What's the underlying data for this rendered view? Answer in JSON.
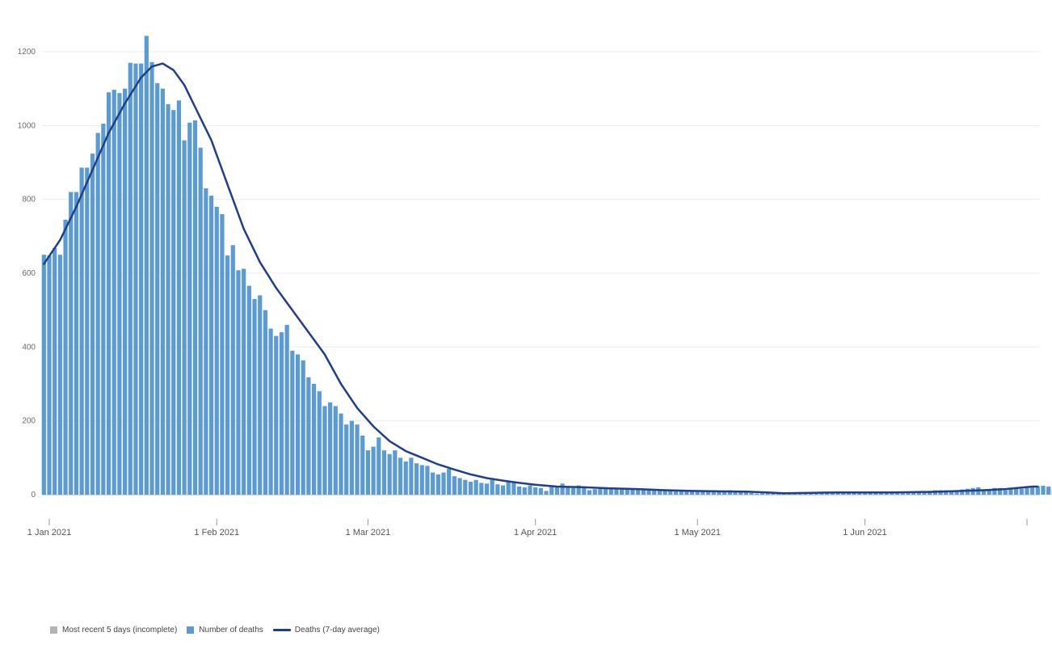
{
  "chart_data": {
    "type": "bar",
    "title": "",
    "xlabel": "",
    "ylabel": "",
    "ylim": [
      0,
      1250
    ],
    "y_ticks": [
      0,
      200,
      400,
      600,
      800,
      1000,
      1200
    ],
    "x_tick_labels": [
      "1 Jan 2021",
      "1 Feb 2021",
      "1 Mar 2021",
      "1 Apr 2021",
      "1 May 2021",
      "1 Jun 2021"
    ],
    "x_tick_dates": [
      "2021-01-01",
      "2021-02-01",
      "2021-03-01",
      "2021-04-01",
      "2021-05-01",
      "2021-06-01",
      "2021-07-01"
    ],
    "grid": "horizontal",
    "legend_position": "bottom-left",
    "series": [
      {
        "name": "Number of deaths",
        "kind": "bar",
        "color": "#5b9bd5",
        "x_start": "2020-12-31",
        "values": [
          650,
          648,
          668,
          650,
          745,
          820,
          820,
          886,
          886,
          924,
          980,
          1005,
          1090,
          1097,
          1088,
          1100,
          1170,
          1168,
          1168,
          1243,
          1172,
          1115,
          1100,
          1058,
          1042,
          1068,
          960,
          1008,
          1014,
          940,
          830,
          810,
          780,
          760,
          648,
          676,
          608,
          612,
          566,
          530,
          540,
          500,
          450,
          430,
          440,
          460,
          390,
          380,
          364,
          318,
          300,
          280,
          240,
          250,
          240,
          220,
          190,
          200,
          190,
          160,
          120,
          130,
          155,
          120,
          110,
          120,
          100,
          90,
          100,
          85,
          80,
          78,
          60,
          55,
          60,
          70,
          50,
          45,
          40,
          35,
          40,
          32,
          30,
          40,
          28,
          25,
          38,
          35,
          22,
          20,
          25,
          20,
          18,
          10,
          22,
          20,
          30,
          20,
          18,
          25,
          20,
          12,
          15,
          18,
          16,
          15,
          16,
          15,
          14,
          15,
          14,
          15,
          14,
          12,
          12,
          10,
          11,
          12,
          11,
          10,
          10,
          10,
          9,
          9,
          10,
          9,
          8,
          12,
          8,
          7,
          6,
          5,
          3,
          4,
          5,
          5,
          6,
          6,
          6,
          6,
          7,
          6,
          7,
          7,
          8,
          8,
          7,
          8,
          8,
          8,
          8,
          8,
          8,
          7,
          7,
          8,
          7,
          7,
          8,
          8,
          7,
          7,
          10,
          10,
          10,
          12,
          12,
          12,
          11,
          12,
          14,
          16,
          18,
          20,
          14,
          12,
          18,
          18,
          12,
          15,
          18,
          16,
          20,
          22,
          22,
          24,
          22,
          24
        ],
        "incomplete_days": 0
      },
      {
        "name": "Most recent 5 days (incomplete)",
        "kind": "bar",
        "color": "#b3b3b3",
        "values": []
      },
      {
        "name": "Deaths (7-day average)",
        "kind": "line",
        "color": "#1f3f8c",
        "points": [
          [
            "2020-12-31",
            625
          ],
          [
            "2021-01-03",
            690
          ],
          [
            "2021-01-06",
            780
          ],
          [
            "2021-01-09",
            880
          ],
          [
            "2021-01-12",
            980
          ],
          [
            "2021-01-15",
            1060
          ],
          [
            "2021-01-18",
            1130
          ],
          [
            "2021-01-20",
            1160
          ],
          [
            "2021-01-22",
            1168
          ],
          [
            "2021-01-24",
            1150
          ],
          [
            "2021-01-26",
            1110
          ],
          [
            "2021-01-28",
            1050
          ],
          [
            "2021-01-31",
            960
          ],
          [
            "2021-02-03",
            840
          ],
          [
            "2021-02-06",
            720
          ],
          [
            "2021-02-09",
            630
          ],
          [
            "2021-02-12",
            560
          ],
          [
            "2021-02-15",
            500
          ],
          [
            "2021-02-18",
            440
          ],
          [
            "2021-02-21",
            380
          ],
          [
            "2021-02-24",
            300
          ],
          [
            "2021-02-27",
            235
          ],
          [
            "2021-03-02",
            185
          ],
          [
            "2021-03-05",
            145
          ],
          [
            "2021-03-08",
            118
          ],
          [
            "2021-03-11",
            100
          ],
          [
            "2021-03-14",
            82
          ],
          [
            "2021-03-17",
            68
          ],
          [
            "2021-03-20",
            55
          ],
          [
            "2021-03-23",
            45
          ],
          [
            "2021-03-26",
            38
          ],
          [
            "2021-03-29",
            32
          ],
          [
            "2021-04-01",
            27
          ],
          [
            "2021-04-05",
            22
          ],
          [
            "2021-04-10",
            20
          ],
          [
            "2021-04-15",
            17
          ],
          [
            "2021-04-20",
            15
          ],
          [
            "2021-04-25",
            12
          ],
          [
            "2021-04-30",
            10
          ],
          [
            "2021-05-05",
            9
          ],
          [
            "2021-05-10",
            8
          ],
          [
            "2021-05-14",
            6
          ],
          [
            "2021-05-17",
            4
          ],
          [
            "2021-05-22",
            5
          ],
          [
            "2021-05-27",
            6
          ],
          [
            "2021-06-01",
            6
          ],
          [
            "2021-06-06",
            6
          ],
          [
            "2021-06-11",
            7
          ],
          [
            "2021-06-15",
            8
          ],
          [
            "2021-06-19",
            10
          ],
          [
            "2021-06-23",
            12
          ],
          [
            "2021-06-27",
            15
          ],
          [
            "2021-06-30",
            19
          ],
          [
            "2021-07-02",
            22
          ],
          [
            "2021-07-03",
            22
          ]
        ]
      }
    ]
  },
  "legend": {
    "incomplete_label": "Most recent 5 days (incomplete)",
    "bars_label": "Number of deaths",
    "avg_label": "Deaths (7-day average)"
  },
  "colors": {
    "bars": "#5b9bd5",
    "incomplete": "#b3b3b3",
    "line": "#1f3f8c",
    "grid": "#ececec"
  }
}
